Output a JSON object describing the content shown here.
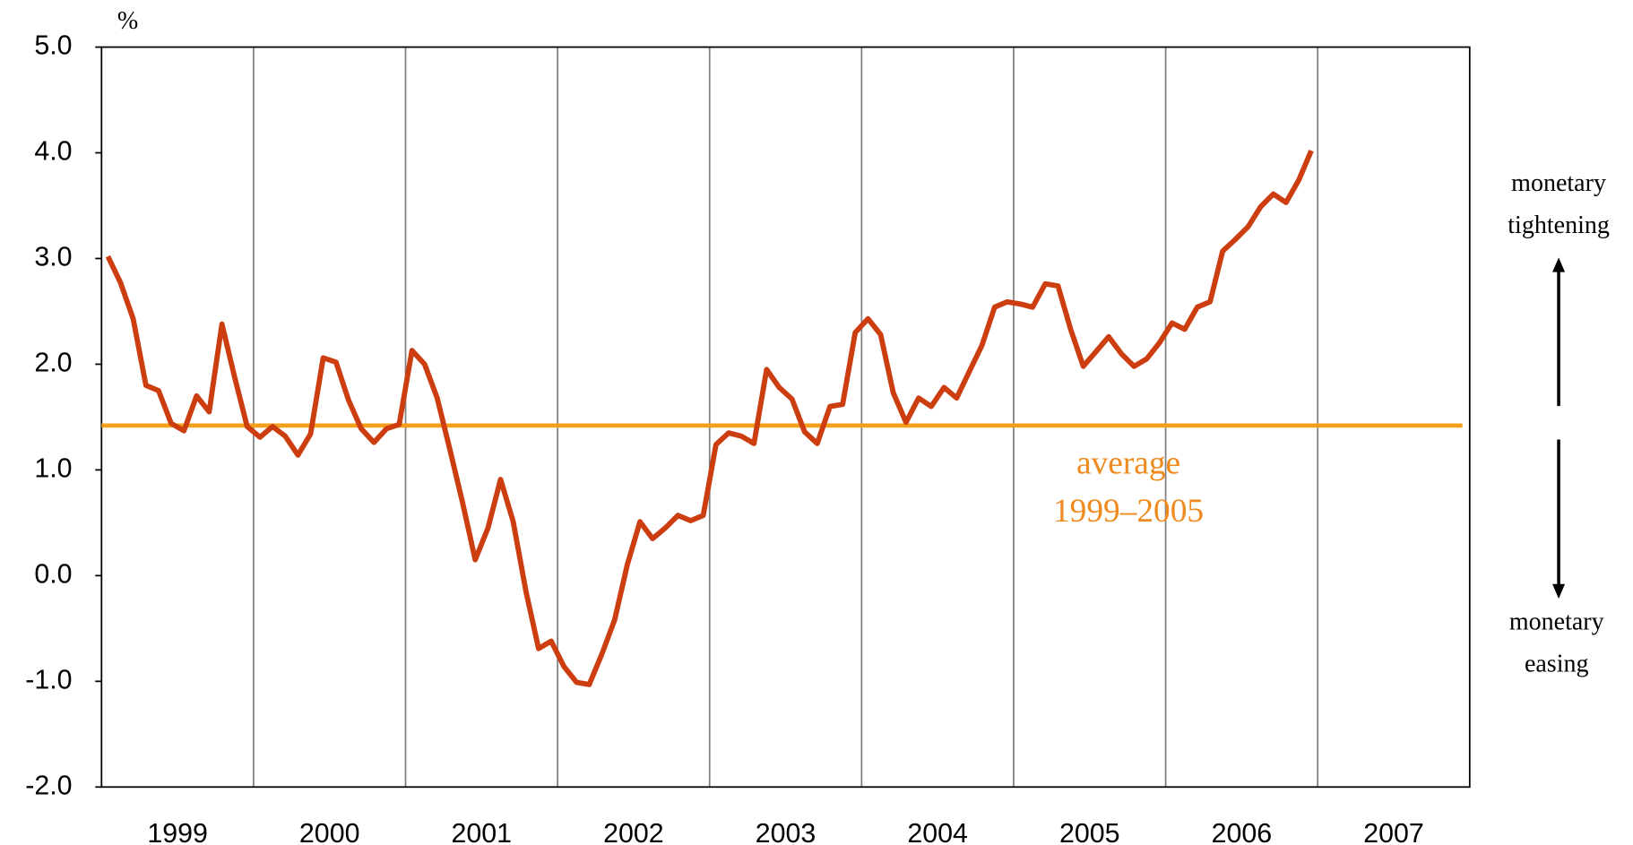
{
  "chart_data": {
    "type": "line",
    "y_axis_label": "%",
    "categories": [
      "1999",
      "2000",
      "2001",
      "2002",
      "2003",
      "2004",
      "2005",
      "2006",
      "2007"
    ],
    "xlim": [
      1999,
      2008
    ],
    "xticks": [
      2000,
      2001,
      2002,
      2003,
      2004,
      2005,
      2006,
      2007
    ],
    "ylim": [
      -2,
      5
    ],
    "yticks": [
      {
        "value": -2,
        "label": "-2.0"
      },
      {
        "value": -1,
        "label": "-1.0"
      },
      {
        "value": 0,
        "label": "0.0"
      },
      {
        "value": 1,
        "label": "1.0"
      },
      {
        "value": 2,
        "label": "2.0"
      },
      {
        "value": 3,
        "label": "3.0"
      },
      {
        "value": 4,
        "label": "4.0"
      },
      {
        "value": 5,
        "label": "5.0"
      }
    ],
    "vertical_grid": true,
    "x": [
      1999.042,
      1999.125,
      1999.208,
      1999.292,
      1999.375,
      1999.458,
      1999.542,
      1999.625,
      1999.708,
      1999.792,
      1999.875,
      1999.958,
      2000.042,
      2000.125,
      2000.208,
      2000.292,
      2000.375,
      2000.458,
      2000.542,
      2000.625,
      2000.708,
      2000.792,
      2000.875,
      2000.958,
      2001.042,
      2001.125,
      2001.208,
      2001.292,
      2001.375,
      2001.458,
      2001.542,
      2001.625,
      2001.708,
      2001.792,
      2001.875,
      2001.958,
      2002.042,
      2002.125,
      2002.208,
      2002.292,
      2002.375,
      2002.458,
      2002.542,
      2002.625,
      2002.708,
      2002.792,
      2002.875,
      2002.958,
      2003.042,
      2003.125,
      2003.208,
      2003.292,
      2003.375,
      2003.458,
      2003.542,
      2003.625,
      2003.708,
      2003.792,
      2003.875,
      2003.958,
      2004.042,
      2004.125,
      2004.208,
      2004.292,
      2004.375,
      2004.458,
      2004.542,
      2004.625,
      2004.708,
      2004.792,
      2004.875,
      2004.958,
      2005.042,
      2005.125,
      2005.208,
      2005.292,
      2005.375,
      2005.458,
      2005.542,
      2005.625,
      2005.708,
      2005.792,
      2005.875,
      2005.958,
      2006.042,
      2006.125,
      2006.208,
      2006.292,
      2006.375,
      2006.458,
      2006.542,
      2006.625,
      2006.708,
      2006.792,
      2006.875,
      2006.958
    ],
    "series": [
      {
        "color": "#cc3d10",
        "values": [
          3.02,
          2.77,
          2.43,
          1.8,
          1.75,
          1.44,
          1.37,
          1.7,
          1.55,
          2.38,
          1.88,
          1.41,
          1.31,
          1.41,
          1.32,
          1.14,
          1.34,
          2.06,
          2.02,
          1.66,
          1.39,
          1.26,
          1.39,
          1.43,
          2.13,
          2.0,
          1.68,
          1.19,
          0.69,
          0.15,
          0.45,
          0.91,
          0.51,
          -0.15,
          -0.69,
          -0.62,
          -0.86,
          -1.01,
          -1.03,
          -0.74,
          -0.42,
          0.1,
          0.51,
          0.35,
          0.45,
          0.57,
          0.52,
          0.57,
          1.24,
          1.35,
          1.32,
          1.25,
          1.95,
          1.78,
          1.67,
          1.36,
          1.25,
          1.6,
          1.62,
          2.3,
          2.43,
          2.28,
          1.73,
          1.45,
          1.68,
          1.6,
          1.78,
          1.68,
          1.93,
          2.18,
          2.54,
          2.59,
          2.57,
          2.54,
          2.76,
          2.74,
          2.33,
          1.98,
          2.12,
          2.26,
          2.1,
          1.98,
          2.05,
          2.2,
          2.39,
          2.33,
          2.54,
          2.59,
          3.07,
          3.18,
          3.3,
          3.49,
          3.61,
          3.53,
          3.74,
          4.02
        ]
      }
    ],
    "reference_line": {
      "value": 1.42,
      "color": "#f5a01a",
      "label": [
        "average",
        "1999–2005"
      ],
      "label_color": "#f08a1e"
    },
    "side_annotations": {
      "top": [
        "monetary",
        "tightening"
      ],
      "bottom": [
        "monetary",
        "easing"
      ]
    }
  }
}
